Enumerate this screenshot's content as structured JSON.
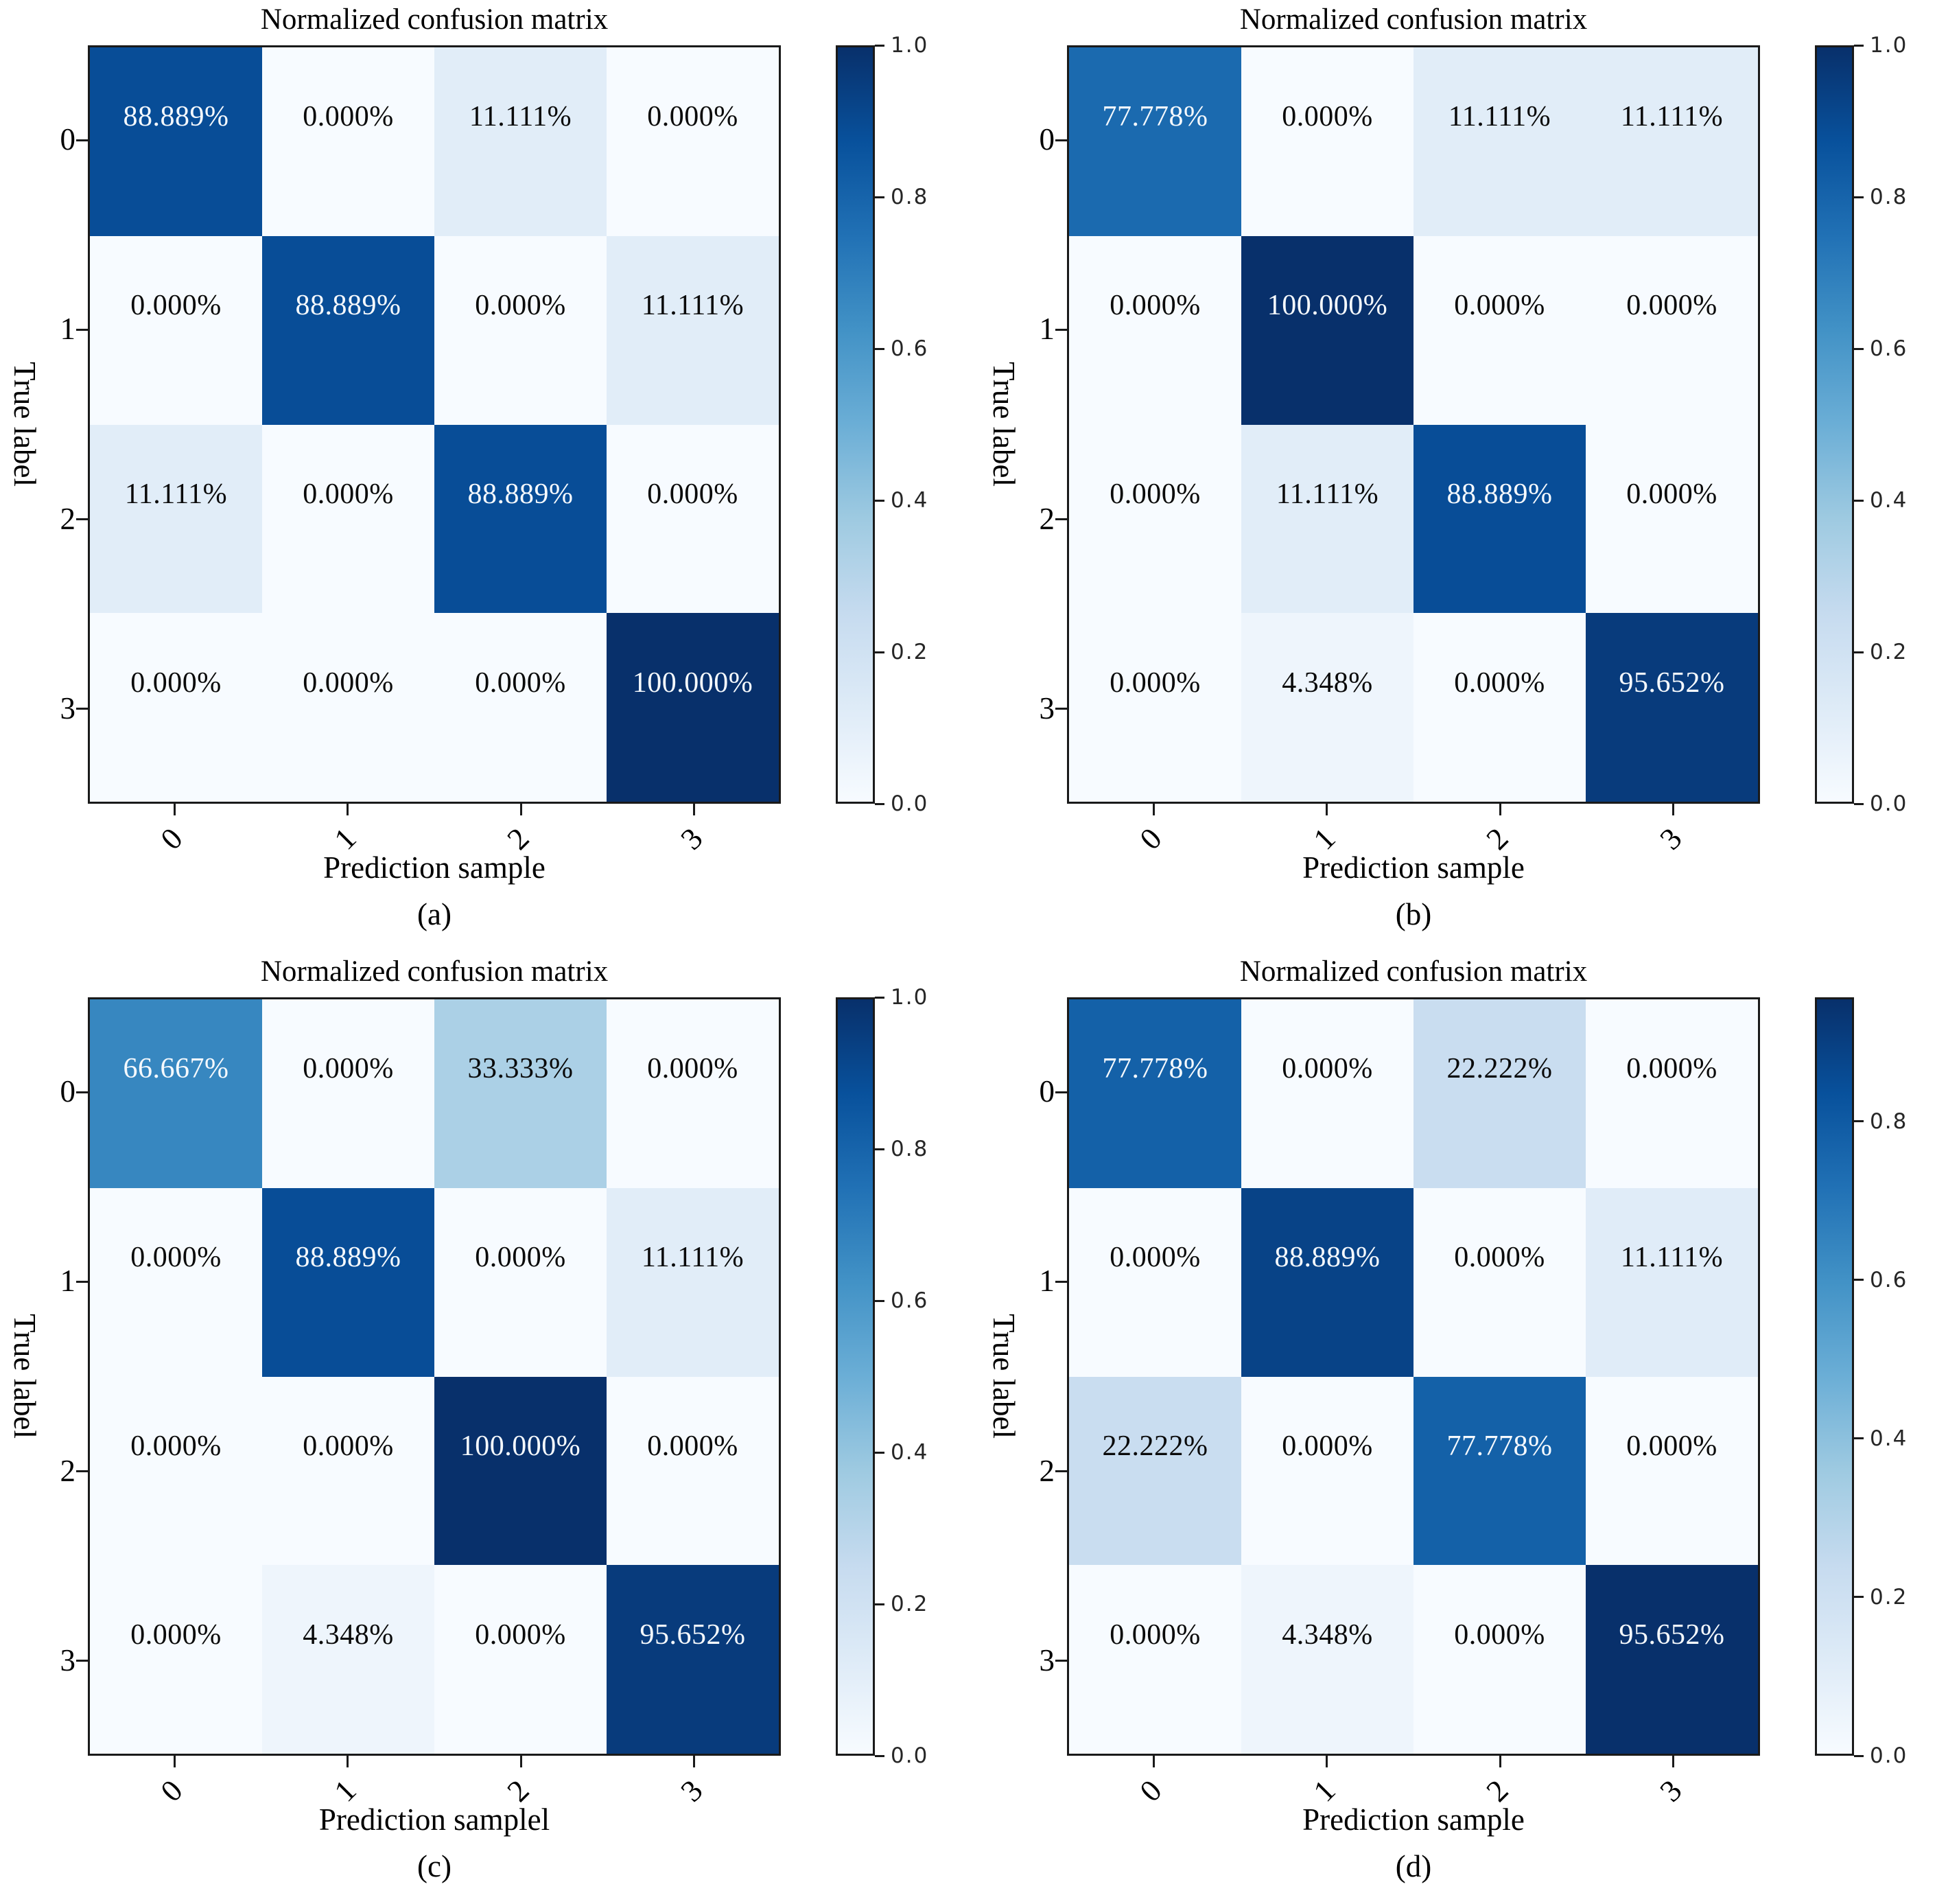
{
  "figure": {
    "background": "#ffffff",
    "axis_color": "#1a1a1a",
    "colormap_name": "Blues",
    "colormap_anchors": [
      "#f7fbff",
      "#deebf7",
      "#c6dbef",
      "#9ecae1",
      "#6baed6",
      "#4292c6",
      "#2171b5",
      "#08519c",
      "#08306b"
    ],
    "cell_text_light": "#f5f9fd",
    "cell_text_dark": "#0a0a0a"
  },
  "chart_data": [
    {
      "type": "heatmap",
      "caption": "(a)",
      "title": "Normalized confusion matrix",
      "xlabel": "Prediction sample",
      "ylabel": "True label",
      "x_ticks": [
        "0",
        "1",
        "2",
        "3"
      ],
      "y_ticks": [
        "0",
        "1",
        "2",
        "3"
      ],
      "vmin": 0,
      "vmax": 1,
      "values": [
        [
          0.88889,
          0,
          0.11111,
          0
        ],
        [
          0,
          0.88889,
          0,
          0.11111
        ],
        [
          0.11111,
          0,
          0.88889,
          0
        ],
        [
          0,
          0,
          0,
          1
        ]
      ],
      "labels": [
        [
          "88.889%",
          "0.000%",
          "11.111%",
          "0.000%"
        ],
        [
          "0.000%",
          "88.889%",
          "0.000%",
          "11.111%"
        ],
        [
          "11.111%",
          "0.000%",
          "88.889%",
          "0.000%"
        ],
        [
          "0.000%",
          "0.000%",
          "0.000%",
          "100.000%"
        ]
      ],
      "colorbar_ticks": [
        {
          "label": "0.0",
          "value": 0
        },
        {
          "label": "0.2",
          "value": 0.2
        },
        {
          "label": "0.4",
          "value": 0.4
        },
        {
          "label": "0.6",
          "value": 0.6
        },
        {
          "label": "0.8",
          "value": 0.8
        },
        {
          "label": "1.0",
          "value": 1
        }
      ]
    },
    {
      "type": "heatmap",
      "caption": "(b)",
      "title": "Normalized confusion matrix",
      "xlabel": "Prediction sample",
      "ylabel": "True label",
      "x_ticks": [
        "0",
        "1",
        "2",
        "3"
      ],
      "y_ticks": [
        "0",
        "1",
        "2",
        "3"
      ],
      "vmin": 0,
      "vmax": 1,
      "values": [
        [
          0.77778,
          0,
          0.11111,
          0.11111
        ],
        [
          0,
          1,
          0,
          0
        ],
        [
          0,
          0.11111,
          0.88889,
          0
        ],
        [
          0,
          0.04348,
          0,
          0.95652
        ]
      ],
      "labels": [
        [
          "77.778%",
          "0.000%",
          "11.111%",
          "11.111%"
        ],
        [
          "0.000%",
          "100.000%",
          "0.000%",
          "0.000%"
        ],
        [
          "0.000%",
          "11.111%",
          "88.889%",
          "0.000%"
        ],
        [
          "0.000%",
          "4.348%",
          "0.000%",
          "95.652%"
        ]
      ],
      "colorbar_ticks": [
        {
          "label": "0.0",
          "value": 0
        },
        {
          "label": "0.2",
          "value": 0.2
        },
        {
          "label": "0.4",
          "value": 0.4
        },
        {
          "label": "0.6",
          "value": 0.6
        },
        {
          "label": "0.8",
          "value": 0.8
        },
        {
          "label": "1.0",
          "value": 1
        }
      ]
    },
    {
      "type": "heatmap",
      "caption": "(c)",
      "title": "Normalized confusion matrix",
      "xlabel": "Prediction samplel",
      "ylabel": "True label",
      "x_ticks": [
        "0",
        "1",
        "2",
        "3"
      ],
      "y_ticks": [
        "0",
        "1",
        "2",
        "3"
      ],
      "vmin": 0,
      "vmax": 1,
      "values": [
        [
          0.66667,
          0,
          0.33333,
          0
        ],
        [
          0,
          0.88889,
          0,
          0.11111
        ],
        [
          0,
          0,
          1,
          0
        ],
        [
          0,
          0.04348,
          0,
          0.95652
        ]
      ],
      "labels": [
        [
          "66.667%",
          "0.000%",
          "33.333%",
          "0.000%"
        ],
        [
          "0.000%",
          "88.889%",
          "0.000%",
          "11.111%"
        ],
        [
          "0.000%",
          "0.000%",
          "100.000%",
          "0.000%"
        ],
        [
          "0.000%",
          "4.348%",
          "0.000%",
          "95.652%"
        ]
      ],
      "colorbar_ticks": [
        {
          "label": "0.0",
          "value": 0
        },
        {
          "label": "0.2",
          "value": 0.2
        },
        {
          "label": "0.4",
          "value": 0.4
        },
        {
          "label": "0.6",
          "value": 0.6
        },
        {
          "label": "0.8",
          "value": 0.8
        },
        {
          "label": "1.0",
          "value": 1
        }
      ]
    },
    {
      "type": "heatmap",
      "caption": "(d)",
      "title": "Normalized confusion matrix",
      "xlabel": "Prediction sample",
      "ylabel": "True label",
      "x_ticks": [
        "0",
        "1",
        "2",
        "3"
      ],
      "y_ticks": [
        "0",
        "1",
        "2",
        "3"
      ],
      "vmin": 0,
      "vmax": 0.95652,
      "values": [
        [
          0.77778,
          0,
          0.22222,
          0
        ],
        [
          0,
          0.88889,
          0,
          0.11111
        ],
        [
          0.22222,
          0,
          0.77778,
          0
        ],
        [
          0,
          0.04348,
          0,
          0.95652
        ]
      ],
      "labels": [
        [
          "77.778%",
          "0.000%",
          "22.222%",
          "0.000%"
        ],
        [
          "0.000%",
          "88.889%",
          "0.000%",
          "11.111%"
        ],
        [
          "22.222%",
          "0.000%",
          "77.778%",
          "0.000%"
        ],
        [
          "0.000%",
          "4.348%",
          "0.000%",
          "95.652%"
        ]
      ],
      "colorbar_ticks": [
        {
          "label": "0.0",
          "value": 0
        },
        {
          "label": "0.2",
          "value": 0.2
        },
        {
          "label": "0.4",
          "value": 0.4
        },
        {
          "label": "0.6",
          "value": 0.6
        },
        {
          "label": "0.8",
          "value": 0.8
        }
      ]
    }
  ]
}
